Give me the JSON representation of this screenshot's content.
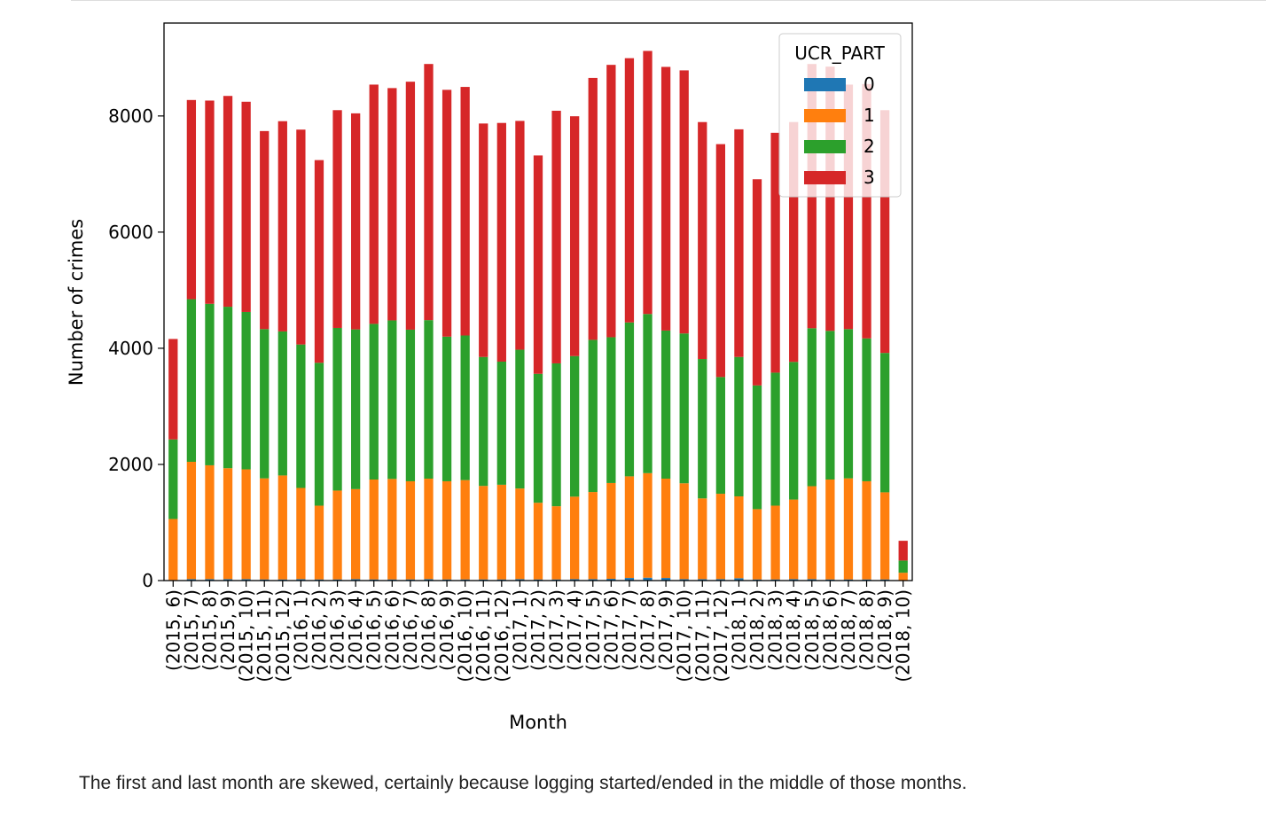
{
  "chart_data": {
    "type": "bar",
    "stacked": true,
    "xlabel": "Month",
    "ylabel": "Number of crimes",
    "ylim": [
      0,
      9600
    ],
    "yticks": [
      0,
      2000,
      4000,
      6000,
      8000
    ],
    "legend": {
      "title": "UCR_PART",
      "placement": "top-right"
    },
    "categories": [
      "(2015, 6)",
      "(2015, 7)",
      "(2015, 8)",
      "(2015, 9)",
      "(2015, 10)",
      "(2015, 11)",
      "(2015, 12)",
      "(2016, 1)",
      "(2016, 2)",
      "(2016, 3)",
      "(2016, 4)",
      "(2016, 5)",
      "(2016, 6)",
      "(2016, 7)",
      "(2016, 8)",
      "(2016, 9)",
      "(2016, 10)",
      "(2016, 11)",
      "(2016, 12)",
      "(2017, 1)",
      "(2017, 2)",
      "(2017, 3)",
      "(2017, 4)",
      "(2017, 5)",
      "(2017, 6)",
      "(2017, 7)",
      "(2017, 8)",
      "(2017, 9)",
      "(2017, 10)",
      "(2017, 11)",
      "(2017, 12)",
      "(2018, 1)",
      "(2018, 2)",
      "(2018, 3)",
      "(2018, 4)",
      "(2018, 5)",
      "(2018, 6)",
      "(2018, 7)",
      "(2018, 8)",
      "(2018, 9)",
      "(2018, 10)"
    ],
    "series": [
      {
        "name": "0",
        "color": "#1f77b4",
        "values": [
          10,
          25,
          25,
          25,
          25,
          20,
          20,
          25,
          20,
          20,
          25,
          20,
          20,
          20,
          25,
          20,
          20,
          20,
          20,
          25,
          20,
          20,
          25,
          25,
          30,
          45,
          50,
          45,
          25,
          25,
          25,
          40,
          20,
          20,
          25,
          25,
          20,
          20,
          20,
          20,
          5
        ]
      },
      {
        "name": "1",
        "color": "#ff7f0e",
        "values": [
          1050,
          2020,
          1960,
          1910,
          1890,
          1740,
          1790,
          1570,
          1270,
          1530,
          1550,
          1720,
          1730,
          1690,
          1730,
          1690,
          1710,
          1610,
          1630,
          1560,
          1320,
          1260,
          1420,
          1500,
          1650,
          1750,
          1800,
          1710,
          1650,
          1390,
          1470,
          1410,
          1210,
          1270,
          1370,
          1600,
          1720,
          1740,
          1690,
          1500,
          130
        ]
      },
      {
        "name": "2",
        "color": "#2ca02c",
        "values": [
          1370,
          2800,
          2780,
          2780,
          2710,
          2570,
          2480,
          2470,
          2460,
          2800,
          2750,
          2680,
          2730,
          2610,
          2730,
          2490,
          2490,
          2220,
          2120,
          2390,
          2220,
          2460,
          2420,
          2620,
          2510,
          2650,
          2740,
          2550,
          2580,
          2400,
          2010,
          2400,
          2130,
          2290,
          2370,
          2720,
          2560,
          2570,
          2460,
          2400,
          210
        ]
      },
      {
        "name": "3",
        "color": "#d62728",
        "values": [
          1730,
          3430,
          3500,
          3630,
          3620,
          3410,
          3620,
          3700,
          3490,
          3750,
          3720,
          4120,
          4000,
          4270,
          4410,
          4250,
          4280,
          4020,
          4110,
          3940,
          3760,
          4350,
          4130,
          4510,
          4690,
          4550,
          4530,
          4540,
          4530,
          4080,
          4010,
          3920,
          3550,
          4130,
          4130,
          4550,
          4550,
          4210,
          4380,
          4180,
          340
        ]
      }
    ]
  },
  "caption": "The first and last month are skewed, certainly because logging started/ended in the middle of those months."
}
